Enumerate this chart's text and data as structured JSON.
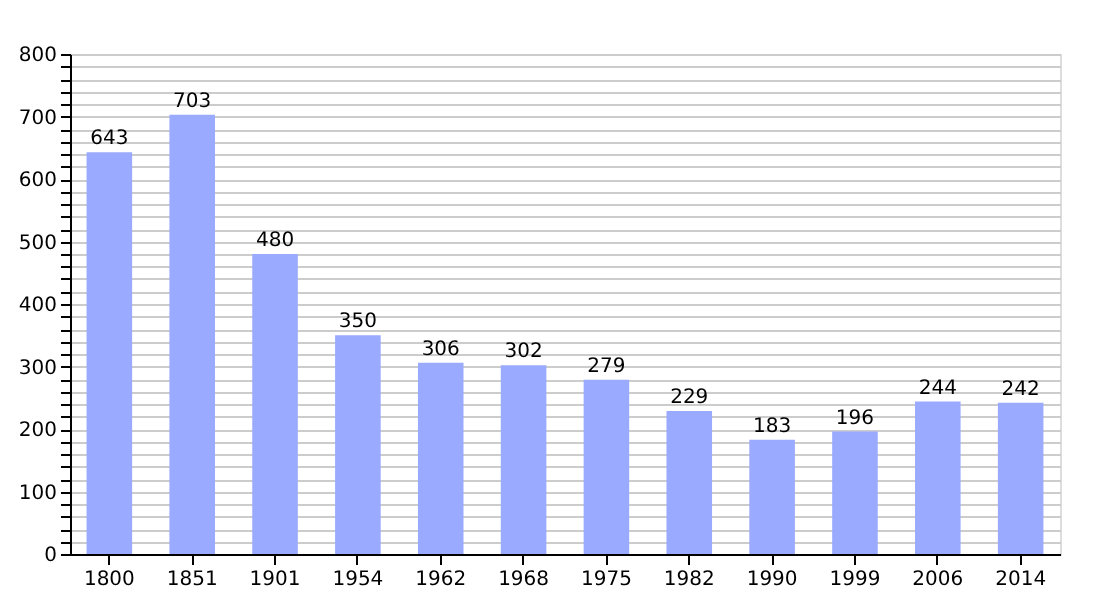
{
  "chart_data": {
    "type": "bar",
    "categories": [
      "1800",
      "1851",
      "1901",
      "1954",
      "1962",
      "1968",
      "1975",
      "1982",
      "1990",
      "1999",
      "2006",
      "2014"
    ],
    "values": [
      643,
      703,
      480,
      350,
      306,
      302,
      279,
      229,
      183,
      196,
      244,
      242
    ],
    "color": "#99aaff",
    "data_labels": true,
    "grid": "y",
    "ylim": [
      0,
      800
    ],
    "yticks": [
      0,
      {
        "value": 20,
        "label": null
      },
      {
        "value": 40,
        "label": null
      },
      {
        "value": 60,
        "label": null
      },
      {
        "value": 80,
        "label": null
      },
      100,
      {
        "value": 120,
        "label": null
      },
      {
        "value": 140,
        "label": null
      },
      {
        "value": 160,
        "label": null
      },
      {
        "value": 180,
        "label": null
      },
      200,
      {
        "value": 220,
        "label": null
      },
      {
        "value": 240,
        "label": null
      },
      {
        "value": 260,
        "label": null
      },
      {
        "value": 280,
        "label": null
      },
      300,
      {
        "value": 320,
        "label": null
      },
      {
        "value": 340,
        "label": null
      },
      {
        "value": 360,
        "label": null
      },
      {
        "value": 380,
        "label": null
      },
      400,
      {
        "value": 420,
        "label": null
      },
      {
        "value": 440,
        "label": null
      },
      {
        "value": 460,
        "label": null
      },
      {
        "value": 480,
        "label": null
      },
      500,
      {
        "value": 520,
        "label": null
      },
      {
        "value": 540,
        "label": null
      },
      {
        "value": 560,
        "label": null
      },
      {
        "value": 580,
        "label": null
      },
      600,
      {
        "value": 620,
        "label": null
      },
      {
        "value": 640,
        "label": null
      },
      {
        "value": 660,
        "label": null
      },
      {
        "value": 680,
        "label": null
      },
      700,
      {
        "value": 720,
        "label": null
      },
      {
        "value": 740,
        "label": null
      },
      {
        "value": 760,
        "label": null
      },
      {
        "value": 780,
        "label": null
      },
      800
    ]
  }
}
